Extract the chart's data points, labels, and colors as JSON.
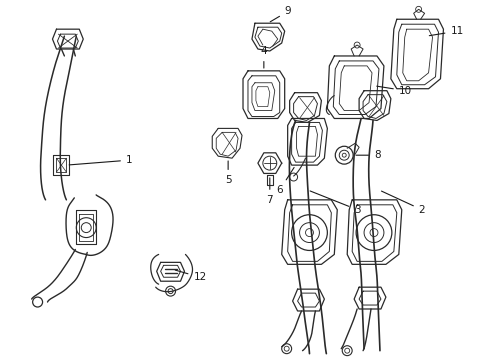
{
  "background_color": "#ffffff",
  "line_color": "#2a2a2a",
  "callout_fontsize": 7.5,
  "callout_color": "#1a1a1a",
  "fig_width": 4.89,
  "fig_height": 3.6,
  "dpi": 100
}
